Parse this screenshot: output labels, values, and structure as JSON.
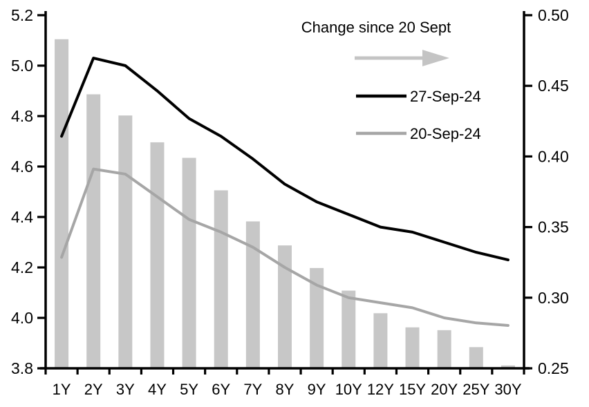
{
  "chart_data": {
    "type": "combo",
    "title": "",
    "categories": [
      "1Y",
      "2Y",
      "3Y",
      "4Y",
      "5Y",
      "6Y",
      "7Y",
      "8Y",
      "9Y",
      "10Y",
      "12Y",
      "15Y",
      "20Y",
      "25Y",
      "30Y"
    ],
    "series": [
      {
        "name": "Change since 20 Sept",
        "type": "bar",
        "axis": "right",
        "color": "#c7c7c7",
        "values": [
          0.483,
          0.444,
          0.429,
          0.41,
          0.399,
          0.376,
          0.354,
          0.337,
          0.321,
          0.305,
          0.289,
          0.279,
          0.277,
          0.265,
          0.252
        ]
      },
      {
        "name": "27-Sep-24",
        "type": "line",
        "axis": "left",
        "color": "#000000",
        "values": [
          4.72,
          5.03,
          5.0,
          4.9,
          4.79,
          4.72,
          4.63,
          4.53,
          4.46,
          4.41,
          4.36,
          4.34,
          4.3,
          4.26,
          4.23
        ]
      },
      {
        "name": "20-Sep-24",
        "type": "line",
        "axis": "left",
        "color": "#a6a6a6",
        "values": [
          4.24,
          4.59,
          4.57,
          4.48,
          4.39,
          4.34,
          4.28,
          4.2,
          4.13,
          4.08,
          4.06,
          4.04,
          4.0,
          3.98,
          3.97
        ]
      }
    ],
    "left_axis": {
      "min": 3.8,
      "max": 5.2,
      "tick_labels": [
        "5.2",
        "5.0",
        "4.8",
        "4.6",
        "4.4",
        "4.2",
        "4.0",
        "3.8"
      ]
    },
    "right_axis": {
      "min": 0.25,
      "max": 0.5,
      "tick_labels": [
        "0.50",
        "0.45",
        "0.40",
        "0.35",
        "0.30",
        "0.25"
      ]
    },
    "legend": {
      "title": "Change since 20 Sept",
      "arrow_icon": "right-arrow",
      "items": [
        "27-Sep-24",
        "20-Sep-24"
      ],
      "position": "top-right-inside"
    },
    "colors": {
      "arrow": "#c4c4c4",
      "bar": "#c7c7c7",
      "line_27sep": "#000000",
      "line_20sep": "#a6a6a6"
    },
    "grid": false,
    "xlabel": "",
    "ylabel_left": "",
    "ylabel_right": ""
  }
}
